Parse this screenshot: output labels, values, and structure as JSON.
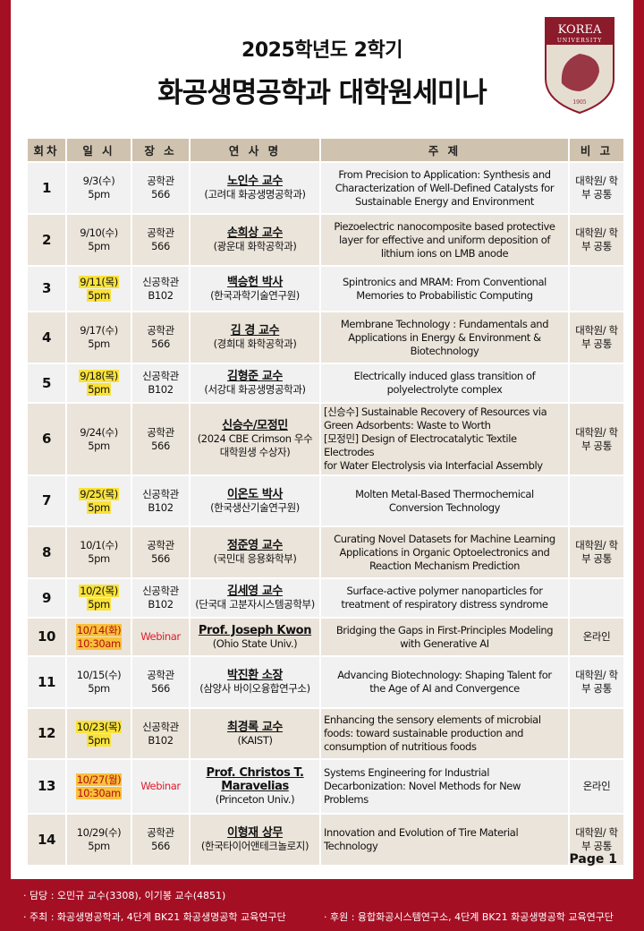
{
  "header": {
    "subtitle": "2025학년도 2학기",
    "title": "화공생명공학과 대학원세미나"
  },
  "logo": {
    "top": "KOREA",
    "bottom": "UNIVERSITY",
    "year": "1905",
    "colors": {
      "crimson": "#8b1a2b",
      "cream": "#e6ddd1"
    }
  },
  "table": {
    "columns": [
      "회차",
      "일 시",
      "장 소",
      "연 사 명",
      "주 제",
      "비 고"
    ],
    "rows": [
      {
        "no": "1",
        "date": "9/3(수)",
        "time": "5pm",
        "place1": "공학관",
        "place2": "566",
        "speaker": "노인수 교수",
        "aff": "(고려대 화공생명공학과)",
        "topic": [
          "From Precision to Application: Synthesis and",
          "Characterization of Well-Defined Catalysts for",
          "Sustainable Energy and Environment"
        ],
        "note": "대학원/ 학부 공통"
      },
      {
        "no": "2",
        "date": "9/10(수)",
        "time": "5pm",
        "place1": "공학관",
        "place2": "566",
        "speaker": "손희상 교수",
        "aff": "(광운대 화학공학과)",
        "topic": [
          "Piezoelectric nanocomposite based protective",
          "layer for effective and uniform deposition of",
          "lithium ions on LMB anode"
        ],
        "note": "대학원/ 학부 공통"
      },
      {
        "no": "3",
        "date": "9/11(목)",
        "time": "5pm",
        "hl": "yellow",
        "place1": "신공학관",
        "place2": "B102",
        "speaker": "백승헌 박사",
        "aff": "(한국과학기술연구원)",
        "topic": [
          "Spintronics and MRAM: From Conventional",
          "Memories to Probabilistic Computing"
        ],
        "note": ""
      },
      {
        "no": "4",
        "date": "9/17(수)",
        "time": "5pm",
        "place1": "공학관",
        "place2": "566",
        "speaker": "김 경 교수",
        "aff": "(경희대 화학공학과)",
        "topic": [
          "Membrane Technology : Fundamentals and",
          "Applications in Energy & Environment &",
          "Biotechnology"
        ],
        "note": "대학원/ 학부 공통"
      },
      {
        "no": "5",
        "date": "9/18(목)",
        "time": "5pm",
        "hl": "yellow",
        "place1": "신공학관",
        "place2": "B102",
        "speaker": "김형준 교수",
        "aff": "(서강대 화공생명공학과)",
        "topic": [
          "Electrically induced glass transition of",
          "polyelectrolyte complex"
        ],
        "note": ""
      },
      {
        "no": "6",
        "date": "9/24(수)",
        "time": "5pm",
        "place1": "공학관",
        "place2": "566",
        "speaker": "신승수/모정민",
        "aff": "(2024 CBE Crimson 우수대학원생 수상자)",
        "topic": [
          "[신승수] Sustainable Recovery of Resources via",
          "Green Adsorbents: Waste to Worth",
          "[모정민] Design of Electrocatalytic Textile Electrodes",
          "for Water Electrolysis via Interfacial Assembly"
        ],
        "left": true,
        "note": "대학원/ 학부 공통"
      },
      {
        "no": "7",
        "date": "9/25(목)",
        "time": "5pm",
        "hl": "yellow",
        "place1": "신공학관",
        "place2": "B102",
        "speaker": "이온도 박사",
        "aff": "(한국생산기술연구원)",
        "topic": [
          "Molten Metal-Based Thermochemical",
          "Conversion Technology"
        ],
        "note": ""
      },
      {
        "no": "8",
        "date": "10/1(수)",
        "time": "5pm",
        "place1": "공학관",
        "place2": "566",
        "speaker": "정준영 교수",
        "aff": "(국민대 응용화학부)",
        "topic": [
          "Curating Novel Datasets for Machine Learning",
          "Applications in Organic Optoelectronics and",
          "Reaction Mechanism Prediction"
        ],
        "note": "대학원/ 학부 공통"
      },
      {
        "no": "9",
        "date": "10/2(목)",
        "time": "5pm",
        "hl": "yellow",
        "place1": "신공학관",
        "place2": "B102",
        "speaker": "김세영 교수",
        "aff": "(단국대 고분자시스템공학부)",
        "topic": [
          "Surface-active polymer nanoparticles for",
          "treatment of respiratory distress syndrome"
        ],
        "note": ""
      },
      {
        "no": "10",
        "date": "10/14(화)",
        "time": "10:30am",
        "hl": "orange",
        "place1": "Webinar",
        "place2": "",
        "webinar": true,
        "speaker": "Prof. Joseph Kwon",
        "aff": "(Ohio State Univ.)",
        "topic": [
          "Bridging the Gaps in First-Principles Modeling",
          "with Generative AI"
        ],
        "note": "온라인"
      },
      {
        "no": "11",
        "date": "10/15(수)",
        "time": "5pm",
        "place1": "공학관",
        "place2": "566",
        "speaker": "박진환 소장",
        "aff": "(삼양사 바이오융합연구소)",
        "topic": [
          "Advancing Biotechnology: Shaping Talent for",
          "the Age of AI and Convergence"
        ],
        "note": "대학원/ 학부 공통"
      },
      {
        "no": "12",
        "date": "10/23(목)",
        "time": "5pm",
        "hl": "yellow",
        "place1": "신공학관",
        "place2": "B102",
        "speaker": "최경록 교수",
        "aff": "(KAIST)",
        "topic": [
          "Enhancing the sensory elements of microbial",
          "foods: toward sustainable production and",
          "consumption of nutritious foods"
        ],
        "left": true,
        "note": ""
      },
      {
        "no": "13",
        "date": "10/27(월)",
        "time": "10:30am",
        "hl": "orange",
        "place1": "Webinar",
        "place2": "",
        "webinar": true,
        "speaker": "Prof. Christos T. Maravelias",
        "aff": "(Princeton Univ.)",
        "topic": [
          "Systems Engineering for Industrial",
          "Decarbonization: Novel Methods for New",
          "Problems"
        ],
        "left": true,
        "note": "온라인"
      },
      {
        "no": "14",
        "date": "10/29(수)",
        "time": "5pm",
        "place1": "공학관",
        "place2": "566",
        "speaker": "이형재 상무",
        "aff": "(한국타이어앤테크놀로지)",
        "topic": [
          "Innovation and Evolution of Tire Material",
          "Technology"
        ],
        "left": true,
        "note": "대학원/ 학부 공통"
      }
    ]
  },
  "page_label": "Page 1",
  "footer": {
    "contact": "· 담당 : 오민규 교수(3308), 이기봉 교수(4851)",
    "host": "· 주최 : 화공생명공학과, 4단계 BK21 화공생명공학 교육연구단",
    "sponsor": "· 후원 : 융합화공시스템연구소, 4단계 BK21 화공생명공학 교육연구단"
  }
}
